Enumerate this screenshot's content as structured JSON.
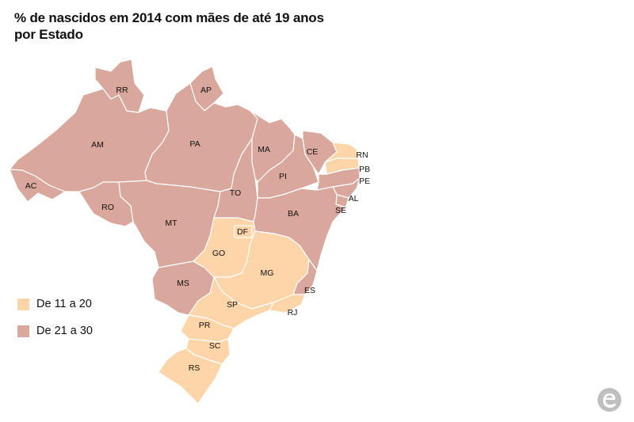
{
  "title": {
    "line1": "% de nascidos em 2014 com mães de até 19 anos",
    "line2": "por Estado"
  },
  "legend": [
    {
      "label": "De 11 a 20",
      "color": "#fdd5a8"
    },
    {
      "label": "De 21 a 30",
      "color": "#d9a79c"
    }
  ],
  "states": {
    "AM": "De 21 a 30",
    "RR": "De 21 a 30",
    "AP": "De 21 a 30",
    "PA": "De 21 a 30",
    "AC": "De 21 a 30",
    "RO": "De 21 a 30",
    "MT": "De 21 a 30",
    "MS": "De 21 a 30",
    "TO": "De 21 a 30",
    "MA": "De 21 a 30",
    "PI": "De 21 a 30",
    "CE": "De 21 a 30",
    "BA": "De 21 a 30",
    "AL": "De 21 a 30",
    "SE": "De 21 a 30",
    "PE": "De 21 a 30",
    "ES": "De 21 a 30",
    "RN": "De 11 a 20",
    "PB": "De 11 a 20",
    "GO": "De 11 a 20",
    "DF": "De 11 a 20",
    "MG": "De 11 a 20",
    "SP": "De 11 a 20",
    "RJ": "De 11 a 20",
    "PR": "De 11 a 20",
    "SC": "De 11 a 20",
    "RS": "De 11 a 20"
  },
  "labels": {
    "RR": "RR",
    "AP": "AP",
    "AM": "AM",
    "PA": "PA",
    "AC": "AC",
    "RO": "RO",
    "MT": "MT",
    "MS": "MS",
    "TO": "TO",
    "MA": "MA",
    "PI": "PI",
    "CE": "CE",
    "RN": "RN",
    "PB": "PB",
    "PE": "PE",
    "AL": "AL",
    "SE": "SE",
    "BA": "BA",
    "DF": "DF",
    "GO": "GO",
    "MG": "MG",
    "ES": "ES",
    "RJ": "RJ",
    "SP": "SP",
    "PR": "PR",
    "SC": "SC",
    "RS": "RS"
  }
}
